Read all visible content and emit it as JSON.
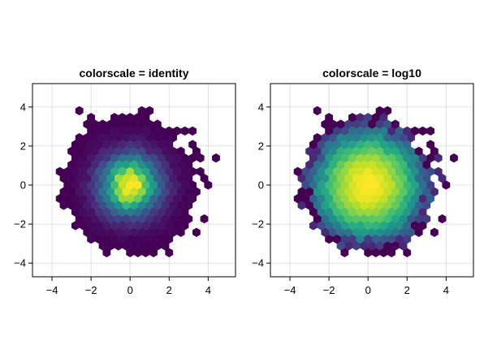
{
  "chart_data": [
    {
      "type": "heatmap",
      "subtype": "hexbin",
      "title": "colorscale = identity",
      "colorscale": "identity",
      "colormap": "viridis",
      "distribution": "2D standard normal sample",
      "xlim": [
        -5,
        5.4
      ],
      "ylim": [
        -4.7,
        5.2
      ],
      "xticks": [
        -4,
        -2,
        0,
        2,
        4
      ],
      "yticks": [
        -4,
        -2,
        0,
        2,
        4
      ],
      "xtick_labels": [
        "−4",
        "−2",
        "0",
        "2",
        "4"
      ],
      "ytick_labels": [
        "−4",
        "−2",
        "0",
        "2",
        "4"
      ],
      "grid": true
    },
    {
      "type": "heatmap",
      "subtype": "hexbin",
      "title": "colorscale = log10",
      "colorscale": "log10",
      "colormap": "viridis",
      "distribution": "2D standard normal sample",
      "xlim": [
        -5,
        5.4
      ],
      "ylim": [
        -4.7,
        5.2
      ],
      "xticks": [
        -4,
        -2,
        0,
        2,
        4
      ],
      "yticks": [
        -4,
        -2,
        0,
        2,
        4
      ],
      "xtick_labels": [
        "−4",
        "−2",
        "0",
        "2",
        "4"
      ],
      "ytick_labels": [
        "−4",
        "−2",
        "0",
        "2",
        "4"
      ],
      "grid": true
    }
  ],
  "colors": {
    "viridis_low": "#440154",
    "viridis_mid": "#21918c",
    "viridis_high": "#fde725"
  }
}
